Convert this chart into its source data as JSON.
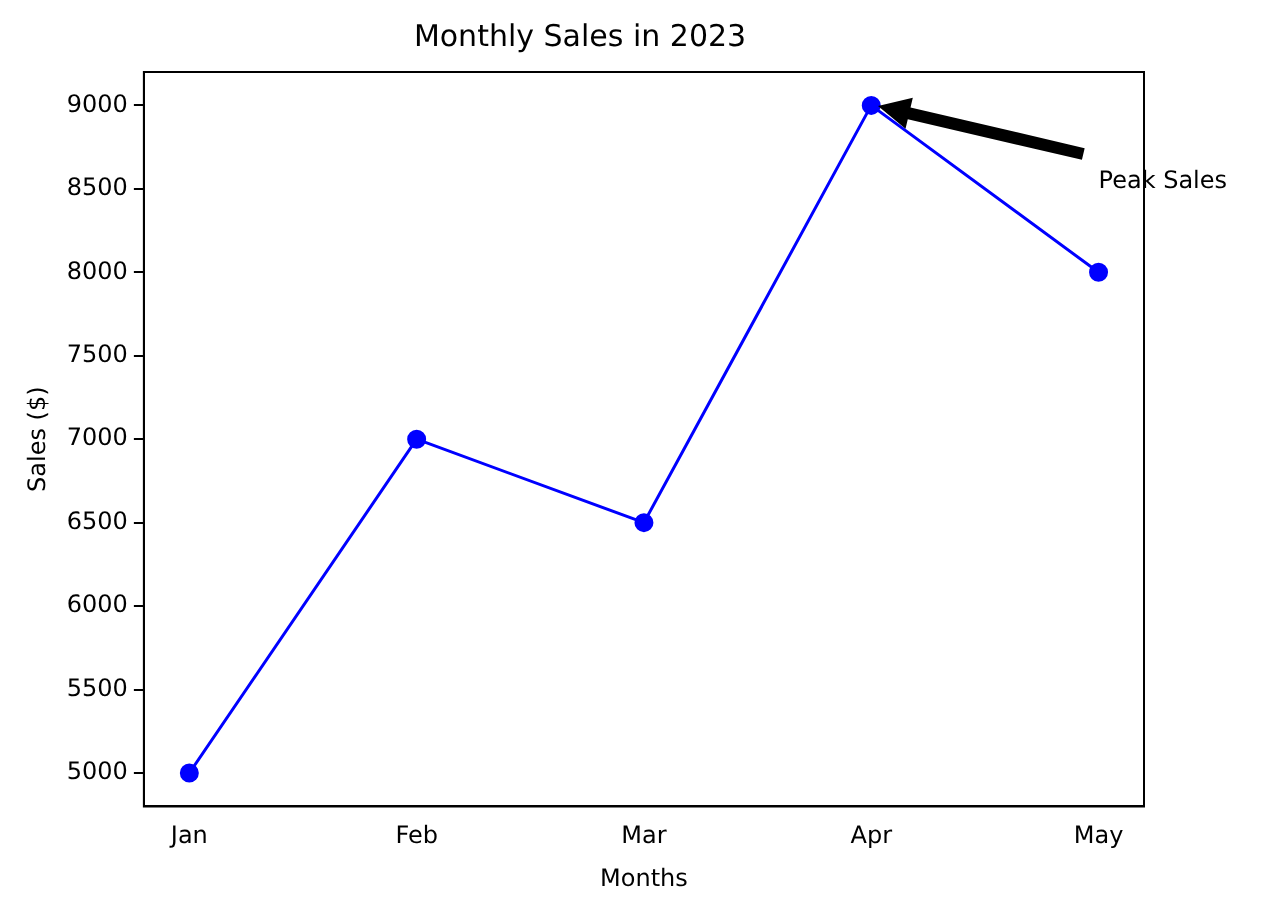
{
  "chart_data": {
    "type": "line",
    "title": "Monthly Sales in 2023",
    "xlabel": "Months",
    "ylabel": "Sales ($)",
    "categories": [
      "Jan",
      "Feb",
      "Mar",
      "Apr",
      "May"
    ],
    "series": [
      {
        "color": "#0000ff",
        "values": [
          5000,
          7000,
          6500,
          9000,
          8000
        ]
      }
    ],
    "ylim": [
      4800,
      9200
    ],
    "yticks": [
      5000,
      5500,
      6000,
      6500,
      7000,
      7500,
      8000,
      8500,
      9000
    ],
    "marker": "circle",
    "line_style": "solid",
    "grid": false,
    "legend": false,
    "annotations": [
      "Peak Sales"
    ]
  }
}
